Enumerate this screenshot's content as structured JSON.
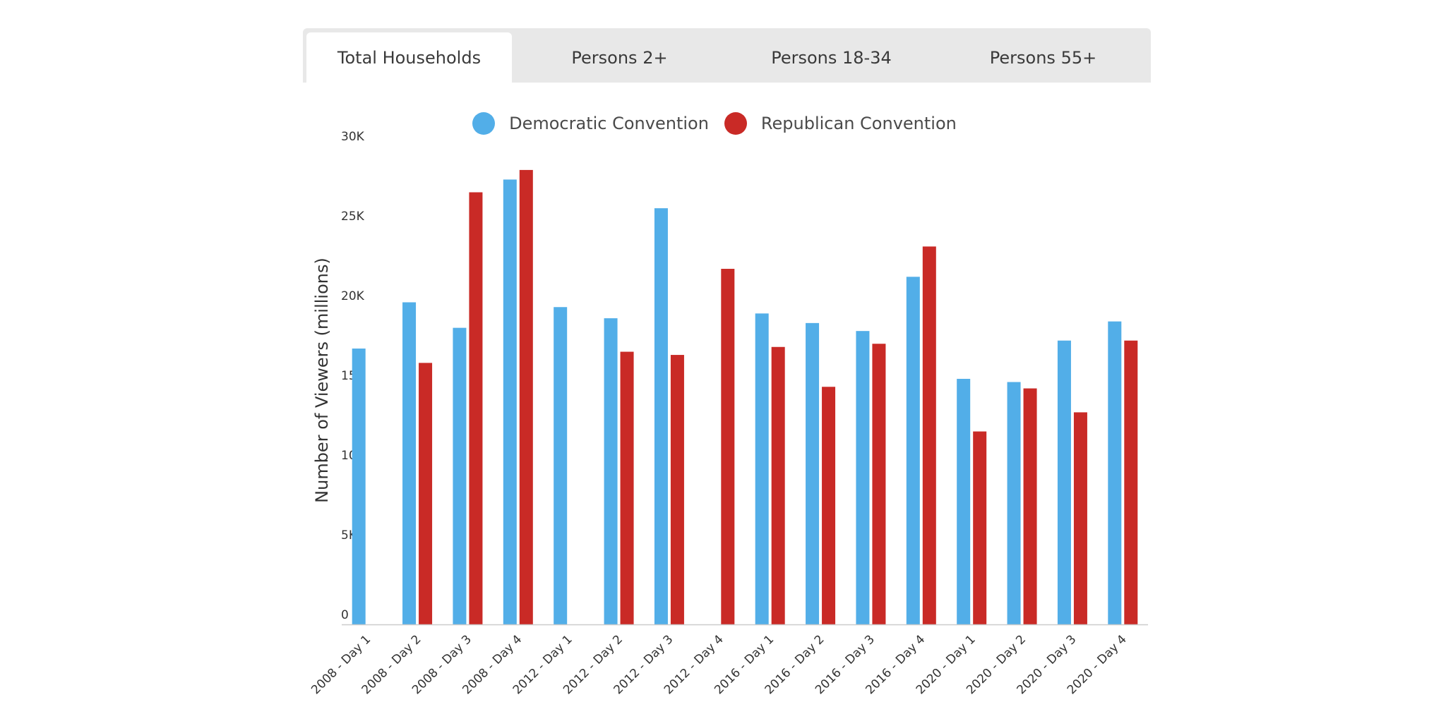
{
  "tabs": [
    {
      "label": "Total Households",
      "active": true
    },
    {
      "label": "Persons 2+",
      "active": false
    },
    {
      "label": "Persons 18-34",
      "active": false
    },
    {
      "label": "Persons 55+",
      "active": false
    }
  ],
  "colors": {
    "democratic": "#52aee8",
    "republican": "#c92a26",
    "tabbar": "#e8e8e8",
    "axis": "#cccccc"
  },
  "chart_data": {
    "type": "bar",
    "ylabel": "Number of Viewers (millions)",
    "ylim": [
      0,
      30000
    ],
    "yticks": [
      {
        "value": 0,
        "label": "0"
      },
      {
        "value": 5000,
        "label": "5K"
      },
      {
        "value": 10000,
        "label": "10K"
      },
      {
        "value": 15000,
        "label": "15K"
      },
      {
        "value": 20000,
        "label": "20K"
      },
      {
        "value": 25000,
        "label": "25K"
      },
      {
        "value": 30000,
        "label": "30K"
      }
    ],
    "grid": false,
    "legend_position": "top-center",
    "categories": [
      "2008 - Day 1",
      "2008 - Day 2",
      "2008 - Day 3",
      "2008 - Day 4",
      "2012 - Day 1",
      "2012 - Day 2",
      "2012 - Day 3",
      "2012 - Day 4",
      "2016 - Day 1",
      "2016 - Day 2",
      "2016 - Day 3",
      "2016 - Day 4",
      "2020 - Day 1",
      "2020 - Day 2",
      "2020 - Day 3",
      "2020 - Day 4"
    ],
    "series": [
      {
        "name": "Democratic Convention",
        "color": "#52aee8",
        "values": [
          17300,
          20200,
          18600,
          27900,
          19900,
          19200,
          26100,
          null,
          19500,
          18900,
          18400,
          21800,
          15400,
          15200,
          17800,
          19000
        ]
      },
      {
        "name": "Republican Convention",
        "color": "#c92a26",
        "values": [
          null,
          16400,
          27100,
          28500,
          null,
          17100,
          16900,
          22300,
          17400,
          14900,
          17600,
          23700,
          12100,
          14800,
          13300,
          17800
        ]
      }
    ]
  }
}
